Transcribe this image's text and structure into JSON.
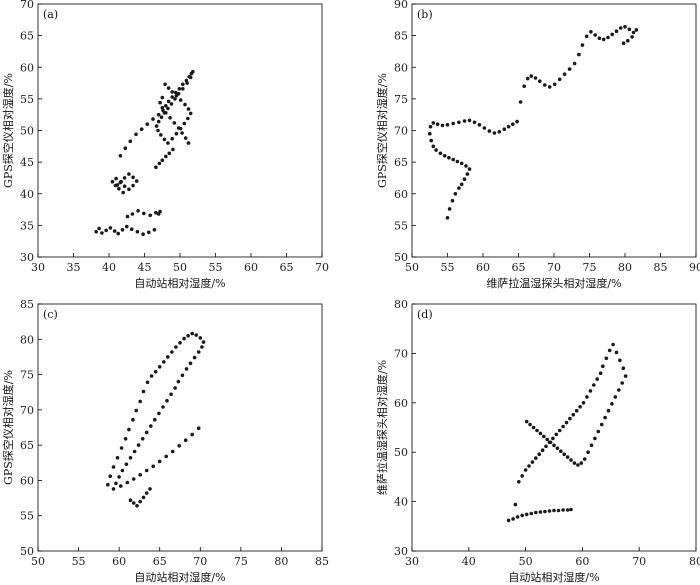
{
  "figure": {
    "colors": {
      "axis": "#000000",
      "marker": "#1a1a1a",
      "background": "#ffffff"
    }
  },
  "chart_data": [
    {
      "type": "scatter",
      "panel_label": "(a)",
      "xlabel": "自动站相对湿度/%",
      "ylabel": "GPS探空仪相对湿度/%",
      "xlim": [
        30,
        70
      ],
      "ylim": [
        30,
        70
      ],
      "xticks": [
        "30",
        "35",
        "40",
        "45",
        "50",
        "55",
        "60",
        "65",
        "70"
      ],
      "yticks": [
        "30",
        "35",
        "40",
        "45",
        "50",
        "55",
        "60",
        "65",
        "70"
      ],
      "grid": false,
      "series": [
        {
          "x": [
            38.2,
            38.6,
            39.0,
            39.6,
            40.2,
            40.8,
            41.3,
            41.9,
            42.5,
            43.2,
            44.0,
            44.8,
            45.6,
            46.4,
            47.0,
            47.2,
            46.6,
            45.8,
            44.9,
            44.1,
            43.3,
            42.6,
            42.0,
            41.4,
            40.9,
            40.5,
            41.0,
            41.6,
            42.2,
            42.8,
            43.4,
            43.9,
            43.4,
            42.8,
            42.2,
            41.7,
            41.2,
            41.6,
            42.3,
            43.0,
            43.8,
            44.6,
            45.4,
            46.2,
            47.0,
            47.6,
            48.0,
            48.4,
            48.9,
            49.4,
            49.9,
            50.4,
            50.9,
            51.3,
            51.6,
            51.8,
            51.5,
            51.0,
            50.4,
            49.8,
            49.3,
            48.8,
            48.3,
            47.8,
            47.4,
            47.0,
            46.7,
            46.9,
            47.3,
            47.8,
            48.3,
            48.9,
            49.5,
            50.1,
            50.6,
            51.1,
            51.5,
            51.2,
            50.7,
            50.1,
            49.5,
            48.9,
            48.4,
            47.9,
            47.5,
            47.2,
            47.5,
            48.0,
            48.6,
            49.2,
            49.8,
            50.3,
            50.8,
            51.2,
            49.0,
            48.5,
            48.0,
            47.5,
            47.1,
            46.6
          ],
          "y": [
            34.0,
            34.5,
            33.8,
            34.2,
            34.6,
            34.1,
            33.7,
            34.3,
            34.8,
            34.4,
            34.0,
            33.6,
            33.9,
            34.3,
            36.8,
            37.2,
            37.0,
            36.6,
            36.9,
            37.3,
            36.8,
            36.4,
            40.2,
            40.8,
            41.3,
            41.9,
            42.4,
            41.8,
            41.2,
            40.7,
            41.3,
            42.0,
            42.6,
            43.1,
            42.5,
            41.9,
            41.4,
            46.0,
            47.2,
            48.3,
            49.4,
            50.2,
            51.0,
            51.8,
            52.5,
            53.2,
            53.9,
            54.6,
            55.3,
            56.0,
            56.6,
            57.3,
            57.9,
            58.5,
            59.0,
            59.3,
            58.4,
            57.5,
            56.6,
            55.8,
            55.0,
            54.2,
            53.5,
            52.8,
            52.1,
            51.4,
            50.7,
            50.0,
            49.3,
            48.6,
            48.0,
            48.7,
            49.5,
            50.3,
            51.1,
            51.9,
            52.7,
            53.4,
            54.1,
            54.8,
            55.5,
            56.1,
            56.7,
            57.3,
            55.2,
            54.4,
            53.6,
            52.8,
            52.0,
            51.2,
            50.4,
            49.6,
            48.8,
            48.0,
            47.0,
            46.4,
            45.9,
            45.3,
            44.8,
            44.2
          ]
        }
      ]
    },
    {
      "type": "scatter",
      "panel_label": "(b)",
      "xlabel": "维萨拉温湿探头相对湿度/%",
      "ylabel": "GPS探空仪相对湿度/%",
      "xlim": [
        50,
        90
      ],
      "ylim": [
        50,
        90
      ],
      "xticks": [
        "50",
        "55",
        "60",
        "65",
        "70",
        "75",
        "80",
        "85",
        "90"
      ],
      "yticks": [
        "50",
        "55",
        "60",
        "65",
        "70",
        "75",
        "80",
        "85",
        "90"
      ],
      "grid": false,
      "series": [
        {
          "x": [
            55.0,
            55.3,
            55.7,
            56.1,
            56.6,
            57.0,
            57.4,
            57.8,
            58.1,
            57.6,
            57.0,
            56.4,
            55.8,
            55.2,
            54.6,
            54.0,
            53.4,
            53.0,
            52.7,
            52.5,
            52.6,
            53.0,
            53.6,
            54.3,
            55.0,
            55.8,
            56.6,
            57.4,
            58.1,
            58.8,
            59.5,
            60.2,
            60.9,
            61.6,
            62.3,
            63.0,
            63.6,
            64.2,
            64.8,
            65.3,
            65.8,
            66.3,
            66.8,
            67.4,
            68.0,
            68.7,
            69.4,
            70.1,
            70.8,
            71.5,
            72.2,
            72.9,
            73.5,
            74.0,
            74.6,
            75.2,
            75.8,
            76.4,
            77.0,
            77.6,
            78.2,
            78.8,
            79.4,
            80.0,
            80.6,
            81.2,
            81.6,
            81.0,
            80.4,
            79.8
          ],
          "y": [
            56.2,
            57.6,
            58.9,
            60.0,
            60.9,
            61.5,
            62.3,
            63.1,
            63.9,
            64.4,
            64.8,
            65.1,
            65.4,
            65.7,
            66.0,
            66.4,
            66.9,
            67.5,
            68.4,
            69.5,
            70.6,
            71.2,
            71.0,
            70.8,
            70.9,
            71.1,
            71.3,
            71.5,
            71.6,
            71.3,
            70.9,
            70.4,
            69.9,
            69.6,
            69.8,
            70.2,
            70.6,
            71.0,
            71.4,
            74.5,
            77.0,
            78.2,
            78.6,
            78.3,
            77.8,
            77.2,
            76.9,
            77.3,
            78.1,
            78.9,
            79.7,
            80.6,
            82.0,
            83.5,
            84.9,
            85.6,
            85.1,
            84.6,
            84.4,
            84.7,
            85.2,
            85.7,
            86.2,
            86.4,
            86.0,
            85.5,
            85.9,
            84.8,
            84.2,
            83.8
          ]
        }
      ]
    },
    {
      "type": "scatter",
      "panel_label": "(c)",
      "xlabel": "自动站相对湿度/%",
      "ylabel": "GPS探空仪相对湿度/%",
      "xlim": [
        50,
        85
      ],
      "ylim": [
        50,
        85
      ],
      "xticks": [
        "50",
        "55",
        "60",
        "65",
        "70",
        "75",
        "80",
        "85"
      ],
      "yticks": [
        "50",
        "55",
        "60",
        "65",
        "70",
        "75",
        "80",
        "85"
      ],
      "grid": false,
      "series": [
        {
          "x": [
            58.6,
            58.9,
            59.3,
            59.8,
            60.3,
            60.8,
            61.2,
            61.7,
            62.1,
            62.6,
            63.0,
            63.5,
            64.0,
            64.5,
            65.0,
            65.5,
            66.0,
            66.5,
            67.0,
            67.5,
            68.0,
            68.5,
            69.0,
            69.5,
            70.0,
            70.4,
            70.2,
            69.8,
            69.3,
            68.8,
            68.3,
            67.8,
            67.3,
            66.9,
            66.4,
            65.9,
            65.4,
            64.9,
            64.4,
            63.9,
            63.4,
            62.9,
            62.4,
            61.9,
            61.4,
            60.9,
            60.4,
            60.0,
            59.6,
            59.3,
            60.2,
            61.0,
            61.8,
            62.6,
            63.4,
            64.2,
            65.0,
            65.8,
            66.6,
            67.4,
            68.2,
            69.0,
            69.8,
            61.4,
            61.8,
            62.2,
            62.6,
            63.0,
            63.4,
            63.8
          ],
          "y": [
            59.4,
            60.6,
            61.9,
            63.2,
            64.6,
            65.9,
            67.2,
            68.6,
            69.9,
            71.2,
            72.6,
            73.9,
            74.8,
            75.4,
            76.1,
            76.8,
            77.5,
            78.2,
            78.9,
            79.5,
            80.1,
            80.5,
            80.8,
            80.6,
            80.2,
            79.6,
            78.9,
            78.2,
            77.4,
            76.6,
            75.8,
            74.9,
            74.0,
            73.1,
            72.2,
            71.3,
            70.4,
            69.5,
            68.6,
            67.7,
            66.8,
            65.9,
            65.0,
            64.1,
            63.2,
            62.3,
            61.4,
            60.5,
            59.6,
            58.8,
            59.2,
            59.7,
            60.2,
            60.8,
            61.4,
            62.0,
            62.7,
            63.4,
            64.1,
            64.9,
            65.7,
            66.5,
            67.4,
            57.2,
            56.8,
            56.4,
            57.0,
            57.6,
            58.2,
            58.8
          ]
        }
      ]
    },
    {
      "type": "scatter",
      "panel_label": "(d)",
      "xlabel": "自动站相对湿度/%",
      "ylabel": "维萨拉温湿探头相对湿度/%",
      "xlim": [
        30,
        80
      ],
      "ylim": [
        30,
        80
      ],
      "xticks": [
        "30",
        "40",
        "50",
        "60",
        "70",
        "80"
      ],
      "yticks": [
        "30",
        "40",
        "50",
        "60",
        "70",
        "80"
      ],
      "grid": false,
      "series": [
        {
          "x": [
            47.0,
            47.8,
            48.6,
            49.4,
            50.2,
            51.0,
            51.8,
            52.6,
            53.4,
            54.2,
            55.0,
            55.8,
            56.6,
            57.4,
            58.0,
            48.2,
            48.8,
            49.4,
            50.0,
            50.6,
            51.2,
            51.8,
            52.4,
            53.0,
            53.6,
            54.2,
            54.8,
            55.4,
            56.0,
            56.6,
            57.2,
            57.8,
            58.4,
            59.0,
            59.6,
            60.2,
            60.8,
            61.4,
            62.0,
            62.6,
            63.2,
            63.6,
            64.2,
            64.8,
            65.4,
            66.0,
            66.6,
            67.2,
            67.6,
            67.0,
            66.4,
            65.8,
            65.2,
            64.6,
            64.0,
            63.4,
            62.8,
            62.2,
            61.6,
            61.0,
            60.4,
            59.8,
            59.2,
            58.6,
            58.0,
            57.4,
            56.8,
            56.2,
            55.6,
            55.0,
            54.4,
            53.8,
            53.2,
            52.6,
            52.0,
            51.4,
            50.8,
            50.2
          ],
          "y": [
            36.2,
            36.5,
            36.9,
            37.2,
            37.4,
            37.6,
            37.8,
            37.9,
            38.0,
            38.1,
            38.2,
            38.2,
            38.3,
            38.3,
            38.4,
            39.4,
            44.0,
            45.2,
            46.4,
            47.2,
            48.0,
            48.8,
            49.6,
            50.4,
            51.2,
            52.0,
            52.8,
            53.6,
            54.4,
            55.2,
            56.0,
            56.8,
            57.6,
            58.4,
            59.2,
            60.0,
            61.2,
            62.4,
            63.6,
            64.8,
            66.0,
            67.4,
            69.0,
            70.6,
            71.8,
            70.2,
            68.6,
            67.0,
            65.4,
            64.0,
            62.6,
            61.2,
            59.8,
            58.4,
            57.0,
            55.6,
            54.2,
            52.8,
            51.4,
            50.0,
            48.6,
            47.8,
            47.4,
            47.8,
            48.4,
            49.0,
            49.6,
            50.2,
            50.8,
            51.4,
            52.0,
            52.6,
            53.2,
            53.8,
            54.4,
            55.0,
            55.6,
            56.2
          ]
        }
      ]
    }
  ]
}
